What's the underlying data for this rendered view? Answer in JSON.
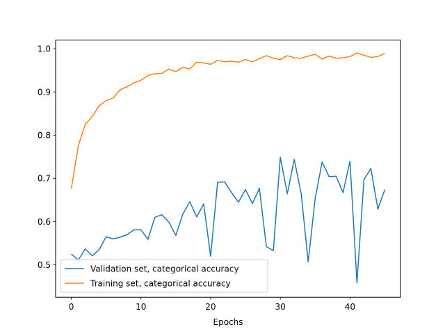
{
  "chart_data": {
    "type": "line",
    "title": "",
    "xlabel": "Epochs",
    "ylabel": "",
    "xlim": [
      -2.25,
      47.25
    ],
    "ylim": [
      0.425,
      1.02
    ],
    "x_ticks": [
      0,
      10,
      20,
      30,
      40
    ],
    "y_ticks": [
      0.5,
      0.6,
      0.7,
      0.8,
      0.9,
      1.0
    ],
    "y_tick_labels": [
      "0.5",
      "0.6",
      "0.7",
      "0.8",
      "0.9",
      "1.0"
    ],
    "grid": false,
    "legend_placement": "lower left",
    "x": [
      0,
      1,
      2,
      3,
      4,
      5,
      6,
      7,
      8,
      9,
      10,
      11,
      12,
      13,
      14,
      15,
      16,
      17,
      18,
      19,
      20,
      21,
      22,
      23,
      24,
      25,
      26,
      27,
      28,
      29,
      30,
      31,
      32,
      33,
      34,
      35,
      36,
      37,
      38,
      39,
      40,
      41,
      42,
      43,
      44,
      45
    ],
    "series": [
      {
        "name": "Validation set, categorical accuracy",
        "color": "#1f77b4",
        "values": [
          0.525,
          0.511,
          0.537,
          0.521,
          0.535,
          0.565,
          0.56,
          0.564,
          0.57,
          0.581,
          0.581,
          0.559,
          0.61,
          0.616,
          0.599,
          0.568,
          0.617,
          0.646,
          0.611,
          0.641,
          0.52,
          0.691,
          0.692,
          0.667,
          0.645,
          0.674,
          0.642,
          0.677,
          0.542,
          0.533,
          0.749,
          0.664,
          0.744,
          0.664,
          0.507,
          0.653,
          0.738,
          0.704,
          0.705,
          0.667,
          0.74,
          0.458,
          0.697,
          0.723,
          0.629,
          0.674
        ]
      },
      {
        "name": "Training set, categorical accuracy",
        "color": "#ff7f0e",
        "values": [
          0.676,
          0.775,
          0.825,
          0.843,
          0.868,
          0.88,
          0.886,
          0.905,
          0.912,
          0.921,
          0.927,
          0.938,
          0.942,
          0.943,
          0.953,
          0.947,
          0.957,
          0.953,
          0.969,
          0.967,
          0.964,
          0.973,
          0.97,
          0.971,
          0.969,
          0.975,
          0.97,
          0.977,
          0.984,
          0.978,
          0.975,
          0.984,
          0.979,
          0.978,
          0.983,
          0.987,
          0.976,
          0.983,
          0.978,
          0.979,
          0.982,
          0.99,
          0.985,
          0.98,
          0.982,
          0.989
        ]
      }
    ]
  }
}
